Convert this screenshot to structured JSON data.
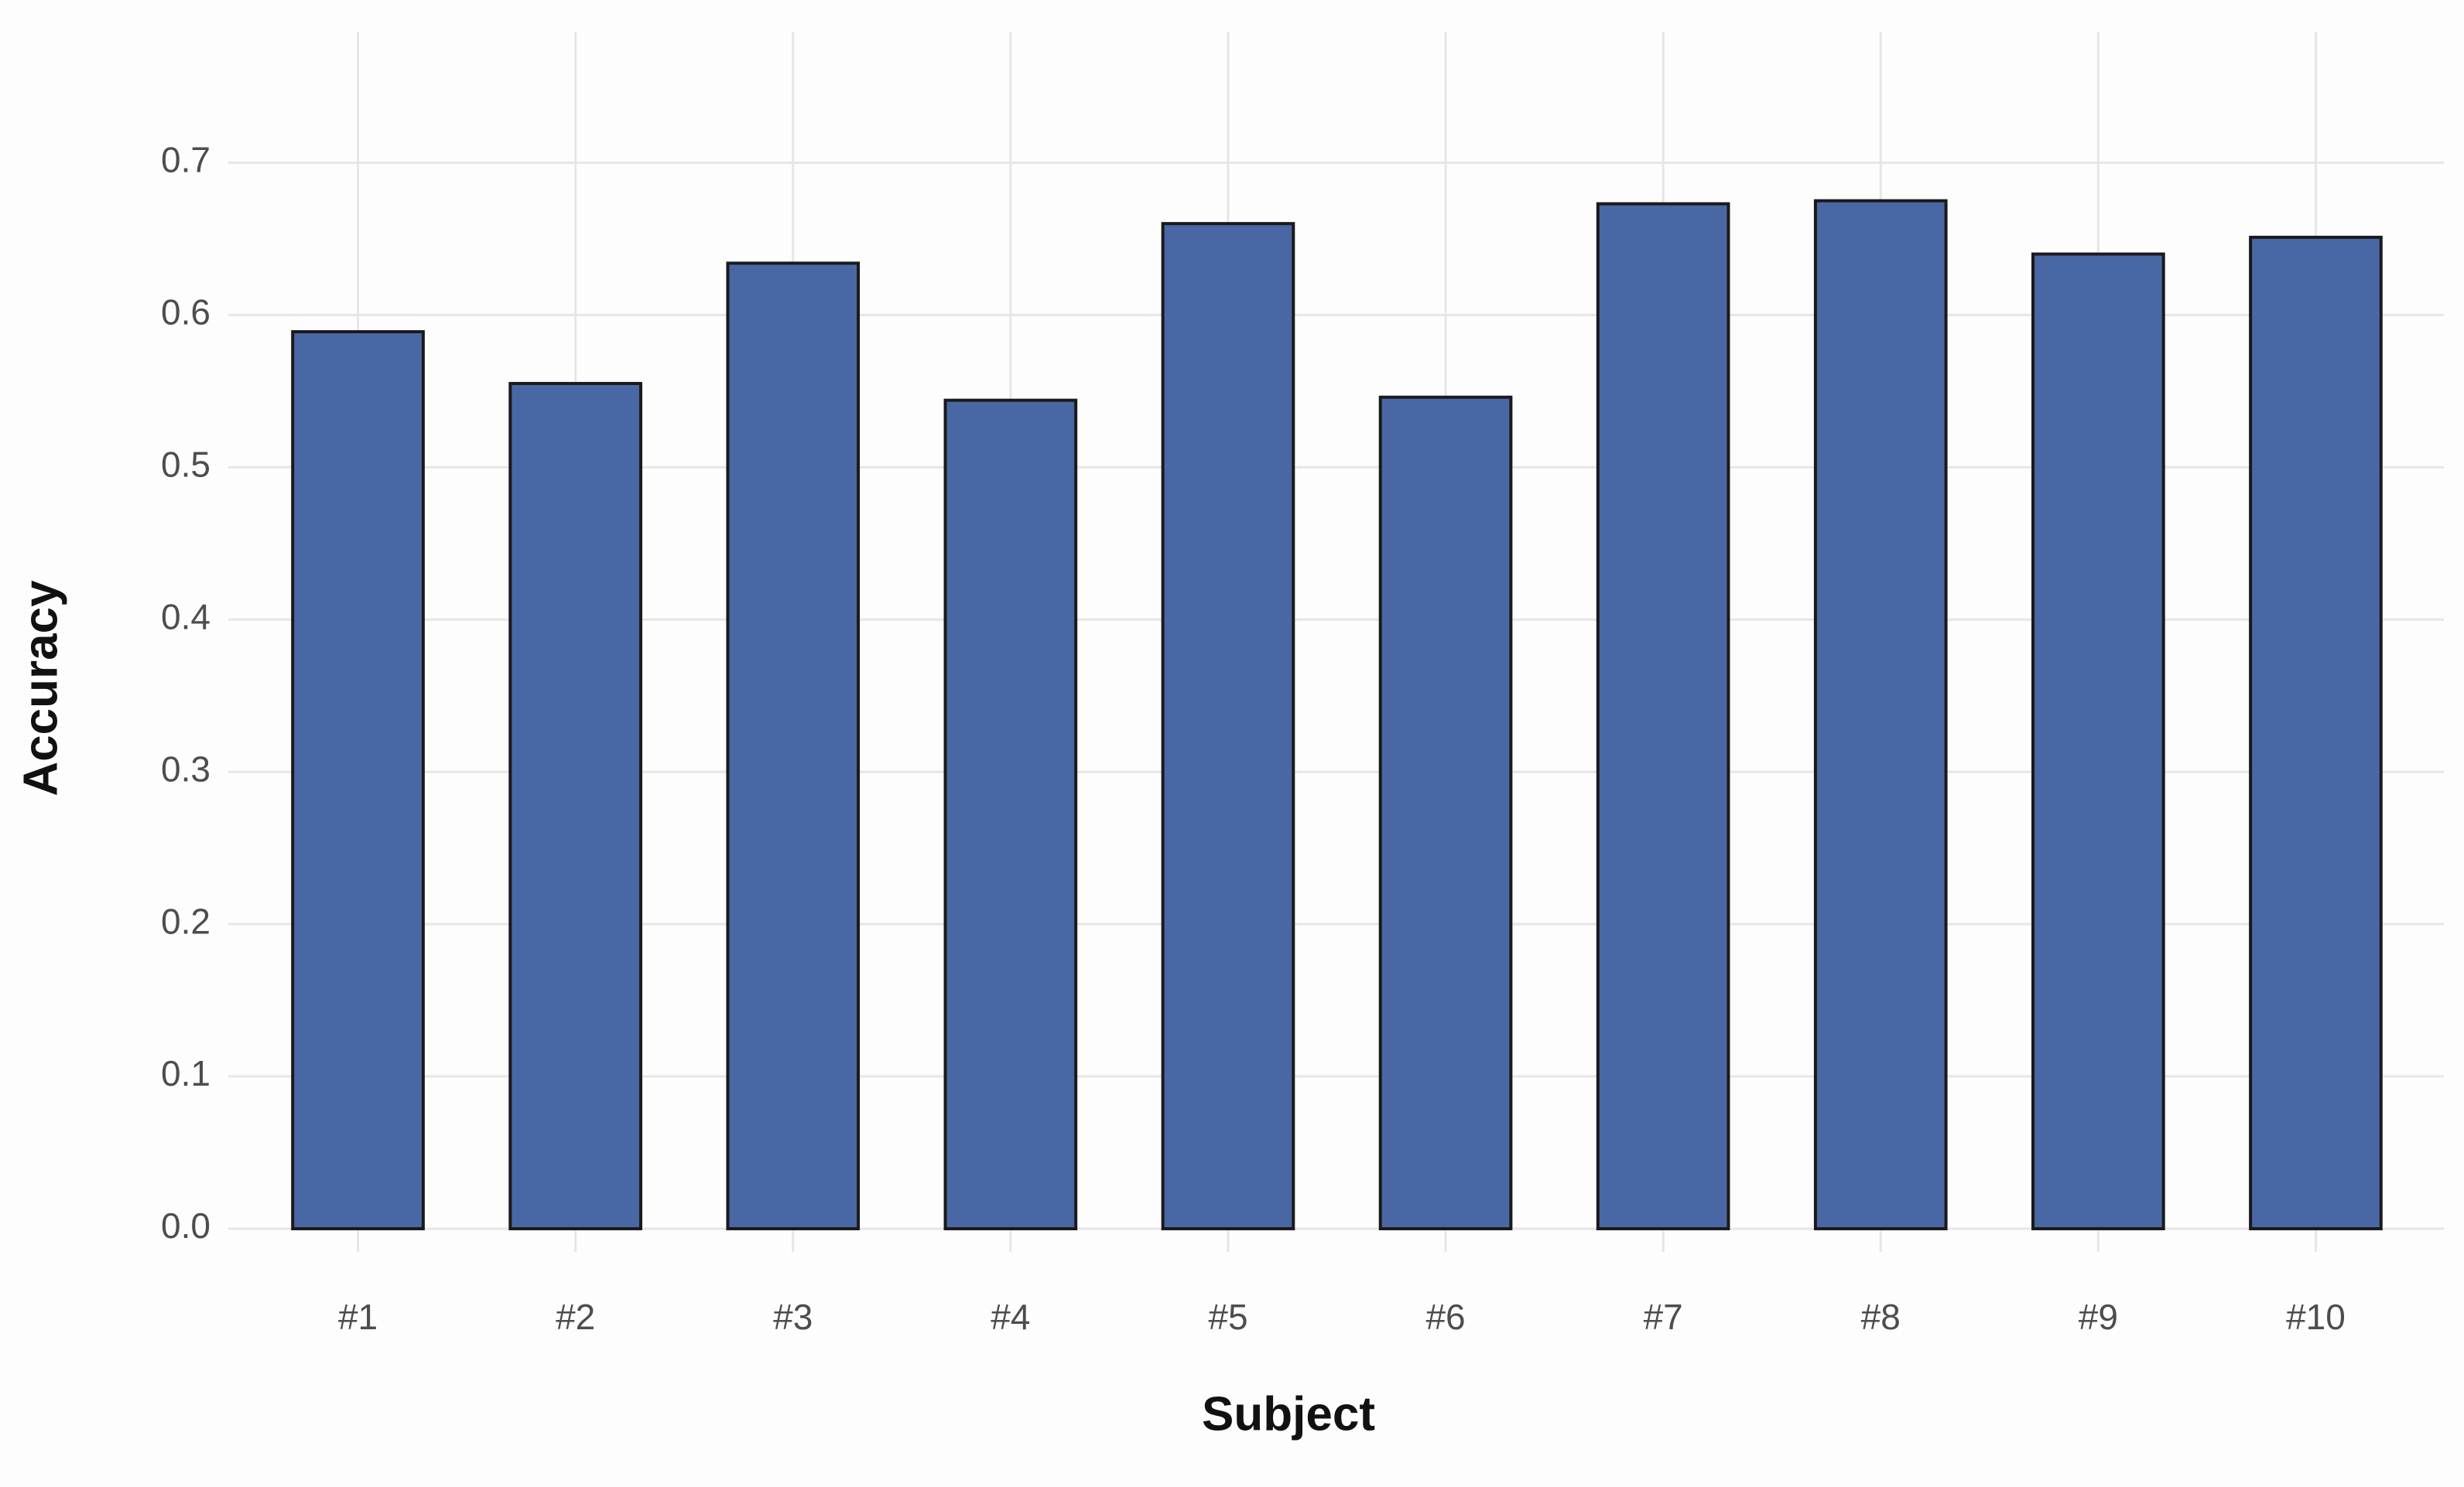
{
  "chart_data": {
    "type": "bar",
    "x_label": "Subject",
    "y_label": "Accuracy",
    "categories": [
      "#1",
      "#2",
      "#3",
      "#4",
      "#5",
      "#6",
      "#7",
      "#8",
      "#9",
      "#10"
    ],
    "values": [
      0.589,
      0.555,
      0.634,
      0.544,
      0.66,
      0.546,
      0.673,
      0.675,
      0.64,
      0.651
    ],
    "color": "#4a67a5",
    "ylim": [
      0,
      0.786
    ],
    "yticks": [
      {
        "value": 0,
        "label": "0.0"
      },
      0.1,
      0.2,
      0.3,
      0.4,
      0.5,
      0.6,
      0.7
    ],
    "grid": true
  }
}
